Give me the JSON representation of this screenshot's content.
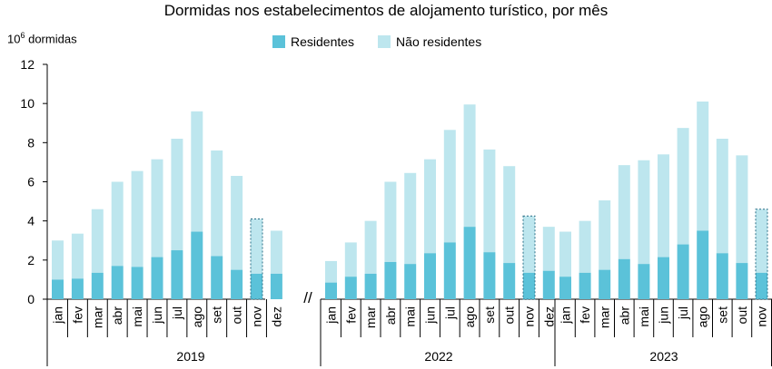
{
  "chart_data": {
    "type": "bar",
    "stacked": true,
    "title": "Dormidas nos estabelecimentos de alojamento turístico, por mês",
    "ylabel_base": "10",
    "ylabel_exp": "6",
    "ylabel_text": " dormidas",
    "ylim": [
      0,
      12
    ],
    "yticks": [
      0,
      2,
      4,
      6,
      8,
      10,
      12
    ],
    "grid": false,
    "legend_position": "top-center",
    "colors": {
      "residentes": "#5BC2D9",
      "nao_residentes": "#BDE6EE",
      "axis": "#000000"
    },
    "series_names": [
      "Residentes",
      "Não residentes"
    ],
    "groups": [
      {
        "year": "2019",
        "months": [
          "jan",
          "fev",
          "mar",
          "abr",
          "mai",
          "jun",
          "jul",
          "ago",
          "set",
          "out",
          "nov",
          "dez"
        ],
        "residentes": [
          1.0,
          1.05,
          1.35,
          1.7,
          1.65,
          2.15,
          2.5,
          3.45,
          2.2,
          1.5,
          1.3,
          1.3
        ],
        "totals": [
          3.0,
          3.35,
          4.6,
          6.0,
          6.55,
          7.15,
          8.2,
          9.6,
          7.6,
          6.3,
          4.1,
          3.5
        ],
        "highlighted": [
          "nov"
        ]
      },
      {
        "year": "2022",
        "months": [
          "jan",
          "fev",
          "mar",
          "abr",
          "mai",
          "jun",
          "jul",
          "ago",
          "set",
          "out",
          "nov",
          "dez"
        ],
        "residentes": [
          0.85,
          1.15,
          1.3,
          1.9,
          1.8,
          2.35,
          2.9,
          3.7,
          2.4,
          1.85,
          1.35,
          1.45
        ],
        "totals": [
          1.95,
          2.9,
          4.0,
          6.0,
          6.45,
          7.15,
          8.65,
          9.95,
          7.65,
          6.8,
          4.25,
          3.7
        ],
        "highlighted": [
          "nov"
        ]
      },
      {
        "year": "2023",
        "months": [
          "jan",
          "fev",
          "mar",
          "abr",
          "mai",
          "jun",
          "jul",
          "ago",
          "set",
          "out",
          "nov"
        ],
        "residentes": [
          1.15,
          1.35,
          1.5,
          2.05,
          1.8,
          2.15,
          2.8,
          3.5,
          2.35,
          1.85,
          1.35
        ],
        "totals": [
          3.45,
          4.0,
          5.05,
          6.85,
          7.1,
          7.4,
          8.75,
          10.1,
          8.2,
          7.35,
          4.6
        ],
        "highlighted": [
          "nov"
        ]
      }
    ],
    "break_mark": "//"
  }
}
